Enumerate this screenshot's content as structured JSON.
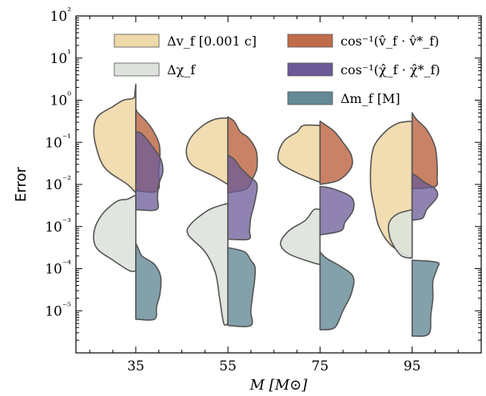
{
  "chart_data": {
    "type": "violin",
    "title": "",
    "xlabel": "M [M⊙]",
    "ylabel": "Error",
    "yscale": "log",
    "ylim": [
      1e-06,
      100
    ],
    "xlim": [
      22,
      110
    ],
    "xticks": [
      35,
      55,
      75,
      95
    ],
    "x_tick_labels": [
      "35",
      "55",
      "75",
      "95"
    ],
    "y_tick_labels": [
      "10⁻⁵",
      "10⁻⁴",
      "10⁻³",
      "10⁻²",
      "10⁻¹",
      "10⁰",
      "10¹",
      "10²"
    ],
    "y_tick_exponents": [
      -5,
      -4,
      -3,
      -2,
      -1,
      0,
      1,
      2
    ],
    "legend": {
      "placement": "top",
      "entries": [
        {
          "label": "Δv_f  [0.001 c]",
          "color": "#f0d9a8",
          "side": "left"
        },
        {
          "label": "Δχ_f",
          "color": "#dde3dc",
          "side": "left"
        },
        {
          "label": "cos⁻¹(v̂_f · v̂*_f)",
          "color": "#c06c4a",
          "side": "right"
        },
        {
          "label": "cos⁻¹(χ̂_f · χ̂*_f)",
          "color": "#6b5a98",
          "side": "right"
        },
        {
          "label": "Δm_f  [M]",
          "color": "#638a96",
          "side": "right"
        }
      ]
    },
    "series": [
      {
        "name": "Δv_f [0.001 c]",
        "color": "#f0d9a8",
        "opacity": 0.9,
        "side": "left",
        "groups": [
          {
            "x": 35,
            "profile": [
              [
                -2.2,
                0
              ],
              [
                -2.0,
                0.2
              ],
              [
                -1.6,
                0.75
              ],
              [
                -1.0,
                0.98
              ],
              [
                -0.6,
                1.0
              ],
              [
                -0.35,
                0.88
              ],
              [
                -0.15,
                0.55
              ],
              [
                0.0,
                0.3
              ],
              [
                0.05,
                0.05
              ],
              [
                0.2,
                0.02
              ],
              [
                0.38,
                0
              ]
            ]
          },
          {
            "x": 55,
            "profile": [
              [
                -2.0,
                0
              ],
              [
                -1.8,
                0.35
              ],
              [
                -1.55,
                0.85
              ],
              [
                -1.25,
                1.0
              ],
              [
                -0.9,
                0.9
              ],
              [
                -0.6,
                0.6
              ],
              [
                -0.45,
                0.3
              ],
              [
                -0.42,
                0
              ]
            ]
          },
          {
            "x": 75,
            "profile": [
              [
                -1.95,
                0
              ],
              [
                -1.75,
                0.5
              ],
              [
                -1.5,
                0.95
              ],
              [
                -1.25,
                1.0
              ],
              [
                -0.95,
                0.85
              ],
              [
                -0.75,
                0.55
              ],
              [
                -0.6,
                0.4
              ],
              [
                -0.6,
                0
              ]
            ]
          },
          {
            "x": 95,
            "profile": [
              [
                -3.72,
                0
              ],
              [
                -3.65,
                0.2
              ],
              [
                -3.4,
                0.55
              ],
              [
                -3.0,
                0.8
              ],
              [
                -2.6,
                0.9
              ],
              [
                -2.0,
                1.0
              ],
              [
                -1.2,
                0.95
              ],
              [
                -0.8,
                0.7
              ],
              [
                -0.55,
                0.35
              ],
              [
                -0.5,
                0
              ]
            ]
          }
        ]
      },
      {
        "name": "Δχ_f",
        "color": "#dde3dc",
        "opacity": 0.9,
        "side": "left",
        "groups": [
          {
            "x": 35,
            "profile": [
              [
                -4.05,
                0
              ],
              [
                -4.05,
                0.15
              ],
              [
                -3.8,
                0.55
              ],
              [
                -3.5,
                0.95
              ],
              [
                -3.1,
                1.0
              ],
              [
                -2.7,
                0.8
              ],
              [
                -2.4,
                0.45
              ],
              [
                -2.35,
                0.2
              ],
              [
                -2.25,
                0
              ]
            ]
          },
          {
            "x": 55,
            "profile": [
              [
                -5.3,
                0
              ],
              [
                -5.3,
                0.1
              ],
              [
                -4.7,
                0.2
              ],
              [
                -4.1,
                0.3
              ],
              [
                -3.6,
                0.55
              ],
              [
                -3.2,
                0.95
              ],
              [
                -2.95,
                0.9
              ],
              [
                -2.6,
                0.45
              ],
              [
                -2.45,
                0
              ]
            ]
          },
          {
            "x": 75,
            "profile": [
              [
                -3.9,
                0
              ],
              [
                -3.85,
                0.2
              ],
              [
                -3.65,
                0.75
              ],
              [
                -3.4,
                0.95
              ],
              [
                -3.1,
                0.75
              ],
              [
                -2.85,
                0.35
              ],
              [
                -2.6,
                0.15
              ],
              [
                -2.6,
                0
              ]
            ]
          },
          {
            "x": 95,
            "profile": [
              [
                -3.75,
                0
              ],
              [
                -3.7,
                0.25
              ],
              [
                -3.45,
                0.45
              ],
              [
                -3.2,
                0.55
              ],
              [
                -2.9,
                0.55
              ],
              [
                -2.7,
                0.35
              ],
              [
                -2.6,
                0
              ]
            ]
          }
        ]
      },
      {
        "name": "cos⁻¹(v̂_f · v̂*_f)",
        "color": "#c06c4a",
        "opacity": 0.85,
        "side": "right",
        "groups": [
          {
            "x": 35,
            "profile": [
              [
                -2.15,
                0
              ],
              [
                -2.15,
                0.52
              ],
              [
                -1.7,
                0.55
              ],
              [
                -1.3,
                0.58
              ],
              [
                -1.0,
                0.55
              ],
              [
                -0.7,
                0.4
              ],
              [
                -0.5,
                0.25
              ],
              [
                -0.3,
                0.05
              ],
              [
                -0.2,
                0
              ]
            ]
          },
          {
            "x": 55,
            "profile": [
              [
                -2.2,
                0
              ],
              [
                -2.1,
                0.45
              ],
              [
                -1.85,
                0.6
              ],
              [
                -1.6,
                0.7
              ],
              [
                -1.2,
                0.68
              ],
              [
                -0.9,
                0.5
              ],
              [
                -0.75,
                0.3
              ],
              [
                -0.5,
                0.15
              ],
              [
                -0.4,
                0
              ]
            ]
          },
          {
            "x": 75,
            "profile": [
              [
                -2.0,
                0
              ],
              [
                -1.9,
                0.45
              ],
              [
                -1.6,
                0.75
              ],
              [
                -1.3,
                0.75
              ],
              [
                -1.0,
                0.55
              ],
              [
                -0.75,
                0.35
              ],
              [
                -0.6,
                0.15
              ],
              [
                -0.5,
                0
              ]
            ]
          },
          {
            "x": 95,
            "profile": [
              [
                -2.1,
                0
              ],
              [
                -2.05,
                0.55
              ],
              [
                -1.85,
                0.6
              ],
              [
                -1.5,
                0.6
              ],
              [
                -1.1,
                0.55
              ],
              [
                -0.7,
                0.35
              ],
              [
                -0.45,
                0.1
              ],
              [
                -0.3,
                0
              ]
            ]
          }
        ]
      },
      {
        "name": "cos⁻¹(χ̂_f · χ̂*_f)",
        "color": "#6b5a98",
        "opacity": 0.75,
        "side": "right",
        "groups": [
          {
            "x": 35,
            "profile": [
              [
                -2.6,
                0
              ],
              [
                -2.6,
                0.5
              ],
              [
                -2.3,
                0.52
              ],
              [
                -2.0,
                0.55
              ],
              [
                -1.7,
                0.65
              ],
              [
                -1.4,
                0.6
              ],
              [
                -1.1,
                0.4
              ],
              [
                -0.8,
                0.15
              ],
              [
                -0.75,
                0
              ]
            ]
          },
          {
            "x": 55,
            "profile": [
              [
                -3.3,
                0
              ],
              [
                -3.3,
                0.5
              ],
              [
                -3.1,
                0.52
              ],
              [
                -2.8,
                0.55
              ],
              [
                -2.4,
                0.65
              ],
              [
                -2.0,
                0.7
              ],
              [
                -1.8,
                0.5
              ],
              [
                -1.6,
                0.3
              ],
              [
                -1.4,
                0.15
              ],
              [
                -1.3,
                0
              ]
            ]
          },
          {
            "x": 75,
            "profile": [
              [
                -3.2,
                0
              ],
              [
                -3.1,
                0.5
              ],
              [
                -2.9,
                0.6
              ],
              [
                -2.6,
                0.8
              ],
              [
                -2.3,
                0.75
              ],
              [
                -2.1,
                0.3
              ],
              [
                -2.05,
                0
              ]
            ]
          },
          {
            "x": 95,
            "profile": [
              [
                -2.85,
                0
              ],
              [
                -2.8,
                0.25
              ],
              [
                -2.6,
                0.35
              ],
              [
                -2.3,
                0.6
              ],
              [
                -2.1,
                0.55
              ],
              [
                -1.95,
                0.3
              ],
              [
                -1.8,
                0.1
              ],
              [
                -1.75,
                0
              ]
            ]
          }
        ]
      },
      {
        "name": "Δm_f [M]",
        "color": "#638a96",
        "opacity": 0.8,
        "side": "right",
        "groups": [
          {
            "x": 35,
            "profile": [
              [
                -5.2,
                0
              ],
              [
                -5.2,
                0.45
              ],
              [
                -4.9,
                0.5
              ],
              [
                -4.6,
                0.58
              ],
              [
                -4.2,
                0.6
              ],
              [
                -3.9,
                0.45
              ],
              [
                -3.7,
                0.15
              ],
              [
                -3.5,
                0.05
              ],
              [
                -3.4,
                0
              ]
            ]
          },
          {
            "x": 55,
            "profile": [
              [
                -5.35,
                0
              ],
              [
                -5.35,
                0.55
              ],
              [
                -5.0,
                0.55
              ],
              [
                -4.6,
                0.6
              ],
              [
                -4.2,
                0.65
              ],
              [
                -3.95,
                0.65
              ],
              [
                -3.8,
                0.55
              ],
              [
                -3.6,
                0.4
              ],
              [
                -3.5,
                0
              ]
            ]
          },
          {
            "x": 75,
            "profile": [
              [
                -5.45,
                0
              ],
              [
                -5.4,
                0.35
              ],
              [
                -5.0,
                0.55
              ],
              [
                -4.6,
                0.75
              ],
              [
                -4.2,
                0.8
              ],
              [
                -3.95,
                0.5
              ],
              [
                -3.75,
                0.15
              ],
              [
                -3.6,
                0
              ]
            ]
          },
          {
            "x": 95,
            "profile": [
              [
                -5.6,
                0
              ],
              [
                -5.55,
                0.4
              ],
              [
                -5.1,
                0.45
              ],
              [
                -4.7,
                0.5
              ],
              [
                -4.3,
                0.5
              ],
              [
                -4.0,
                0.6
              ],
              [
                -3.85,
                0.6
              ],
              [
                -3.8,
                0
              ]
            ]
          }
        ]
      }
    ]
  }
}
